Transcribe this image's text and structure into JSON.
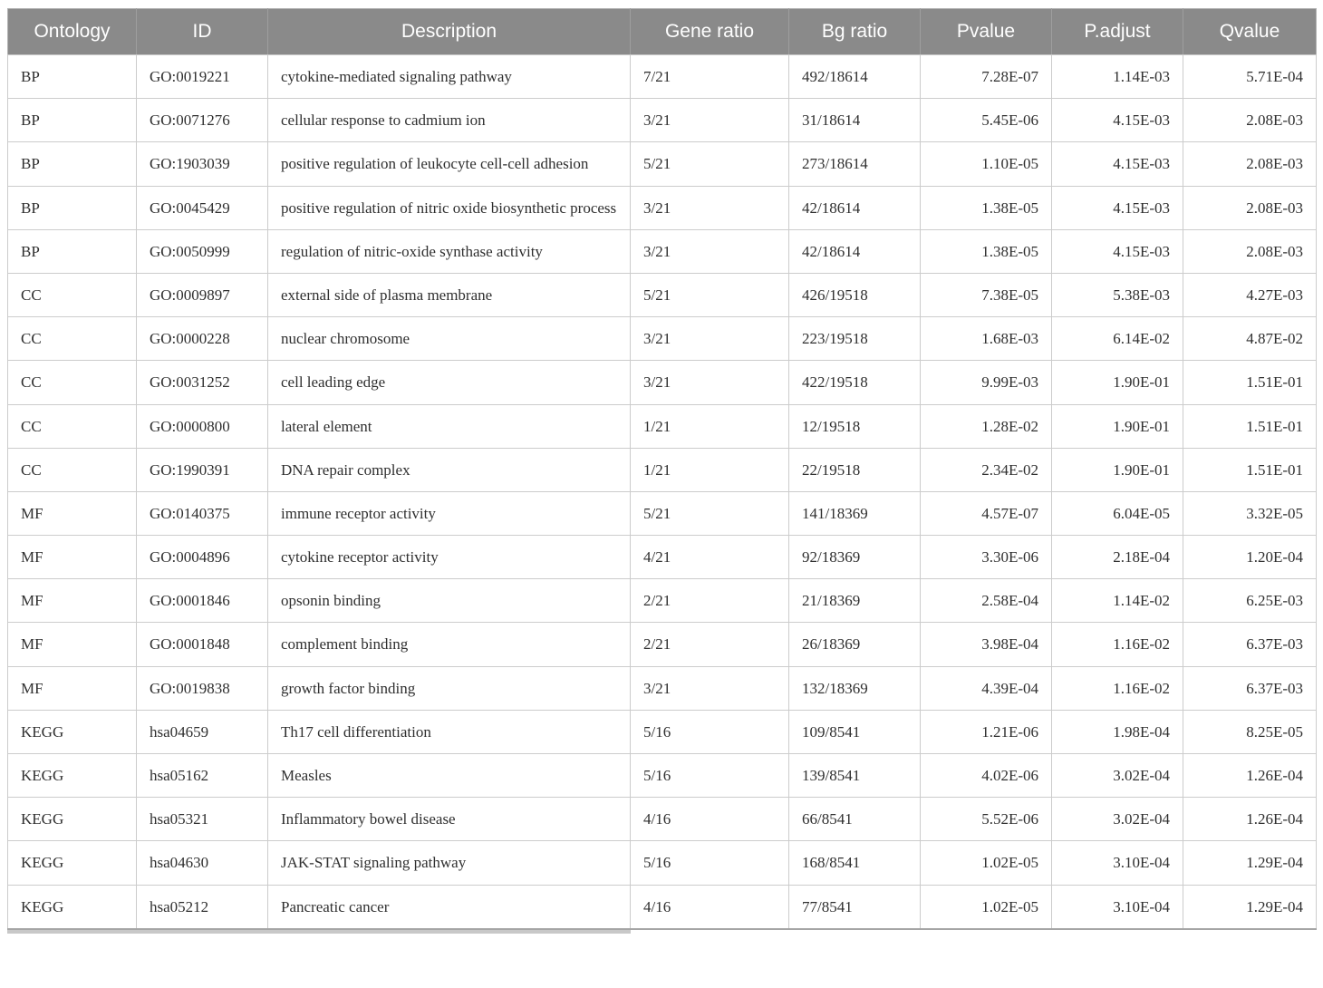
{
  "table": {
    "name": "go-kegg-enrichment-table",
    "columns": [
      {
        "key": "ontology",
        "label": "Ontology",
        "align": "left"
      },
      {
        "key": "id",
        "label": "ID",
        "align": "left"
      },
      {
        "key": "description",
        "label": "Description",
        "align": "left"
      },
      {
        "key": "gene-ratio",
        "label": "Gene ratio",
        "align": "left"
      },
      {
        "key": "bg-ratio",
        "label": "Bg ratio",
        "align": "left"
      },
      {
        "key": "pvalue",
        "label": "Pvalue",
        "align": "right"
      },
      {
        "key": "p-adjust",
        "label": "P.adjust",
        "align": "right"
      },
      {
        "key": "qvalue",
        "label": "Qvalue",
        "align": "right"
      }
    ],
    "rows": [
      [
        "BP",
        "GO:0019221",
        "cytokine-mediated signaling pathway",
        "7/21",
        "492/18614",
        "7.28E-07",
        "1.14E-03",
        "5.71E-04"
      ],
      [
        "BP",
        "GO:0071276",
        "cellular response to cadmium ion",
        "3/21",
        "31/18614",
        "5.45E-06",
        "4.15E-03",
        "2.08E-03"
      ],
      [
        "BP",
        "GO:1903039",
        "positive regulation of leukocyte cell-cell adhesion",
        "5/21",
        "273/18614",
        "1.10E-05",
        "4.15E-03",
        "2.08E-03"
      ],
      [
        "BP",
        "GO:0045429",
        "positive regulation of nitric oxide biosynthetic process",
        "3/21",
        "42/18614",
        "1.38E-05",
        "4.15E-03",
        "2.08E-03"
      ],
      [
        "BP",
        "GO:0050999",
        "regulation of nitric-oxide synthase activity",
        "3/21",
        "42/18614",
        "1.38E-05",
        "4.15E-03",
        "2.08E-03"
      ],
      [
        "CC",
        "GO:0009897",
        "external side of plasma membrane",
        "5/21",
        "426/19518",
        "7.38E-05",
        "5.38E-03",
        "4.27E-03"
      ],
      [
        "CC",
        "GO:0000228",
        "nuclear chromosome",
        "3/21",
        "223/19518",
        "1.68E-03",
        "6.14E-02",
        "4.87E-02"
      ],
      [
        "CC",
        "GO:0031252",
        "cell leading edge",
        "3/21",
        "422/19518",
        "9.99E-03",
        "1.90E-01",
        "1.51E-01"
      ],
      [
        "CC",
        "GO:0000800",
        "lateral element",
        "1/21",
        "12/19518",
        "1.28E-02",
        "1.90E-01",
        "1.51E-01"
      ],
      [
        "CC",
        "GO:1990391",
        "DNA repair complex",
        "1/21",
        "22/19518",
        "2.34E-02",
        "1.90E-01",
        "1.51E-01"
      ],
      [
        "MF",
        "GO:0140375",
        "immune receptor activity",
        "5/21",
        "141/18369",
        "4.57E-07",
        "6.04E-05",
        "3.32E-05"
      ],
      [
        "MF",
        "GO:0004896",
        "cytokine receptor activity",
        "4/21",
        "92/18369",
        "3.30E-06",
        "2.18E-04",
        "1.20E-04"
      ],
      [
        "MF",
        "GO:0001846",
        "opsonin binding",
        "2/21",
        "21/18369",
        "2.58E-04",
        "1.14E-02",
        "6.25E-03"
      ],
      [
        "MF",
        "GO:0001848",
        "complement binding",
        "2/21",
        "26/18369",
        "3.98E-04",
        "1.16E-02",
        "6.37E-03"
      ],
      [
        "MF",
        "GO:0019838",
        "growth factor binding",
        "3/21",
        "132/18369",
        "4.39E-04",
        "1.16E-02",
        "6.37E-03"
      ],
      [
        "KEGG",
        "hsa04659",
        "Th17 cell differentiation",
        "5/16",
        "109/8541",
        "1.21E-06",
        "1.98E-04",
        "8.25E-05"
      ],
      [
        "KEGG",
        "hsa05162",
        "Measles",
        "5/16",
        "139/8541",
        "4.02E-06",
        "3.02E-04",
        "1.26E-04"
      ],
      [
        "KEGG",
        "hsa05321",
        "Inflammatory bowel disease",
        "4/16",
        "66/8541",
        "5.52E-06",
        "3.02E-04",
        "1.26E-04"
      ],
      [
        "KEGG",
        "hsa04630",
        "JAK-STAT signaling pathway",
        "5/16",
        "168/8541",
        "1.02E-05",
        "3.10E-04",
        "1.29E-04"
      ],
      [
        "KEGG",
        "hsa05212",
        "Pancreatic cancer",
        "4/16",
        "77/8541",
        "1.02E-05",
        "3.10E-04",
        "1.29E-04"
      ]
    ],
    "colors": {
      "header_bg": "#8a8a8a",
      "header_text": "#ffffff",
      "body_text": "#2f2f2f",
      "cell_border": "#cccccc",
      "outer_border": "#b3b3b3",
      "row_bg": "#ffffff"
    }
  }
}
